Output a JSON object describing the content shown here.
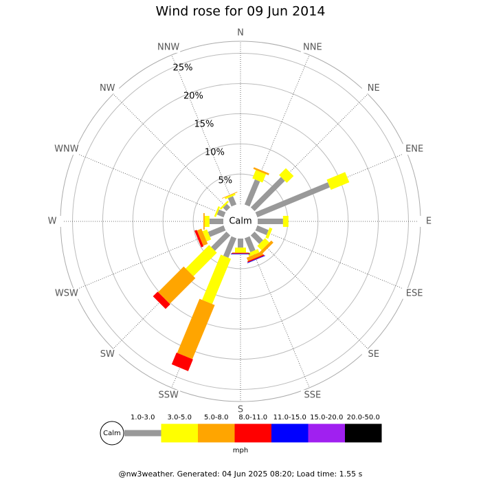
{
  "chart_data": {
    "type": "windrose",
    "title": "Wind rose for 09 Jun 2014",
    "calm_label": "Calm",
    "unit": "mph",
    "footer": "@nw3weather. Generated: 04 Jun 2025 08:20; Load time: 1.55 s",
    "categories": [
      "N",
      "NNE",
      "NE",
      "ENE",
      "E",
      "ESE",
      "SE",
      "SSE",
      "S",
      "SSW",
      "SW",
      "WSW",
      "W",
      "WNW",
      "NW",
      "NNW"
    ],
    "series": [
      {
        "name": "1.0-3.0",
        "color": "#999999",
        "values": [
          0,
          4.5,
          7.1,
          13,
          4.2,
          2,
          2,
          2.5,
          1.5,
          3.5,
          3.6,
          2.8,
          2.3,
          1.2,
          0.8,
          1.5
        ]
      },
      {
        "name": "3.0-5.0",
        "color": "#ffff00",
        "values": [
          0,
          1.5,
          1.6,
          3.3,
          0.9,
          0.5,
          1,
          0.6,
          0.8,
          8.1,
          5.5,
          0.8,
          0.8,
          0.3,
          0.3,
          0.3
        ]
      },
      {
        "name": "5.0-8.0",
        "color": "#ffa500",
        "values": [
          0,
          0.3,
          0,
          0,
          0,
          0,
          0.5,
          0.6,
          0.1,
          9.7,
          6,
          0.8,
          0.2,
          0,
          0,
          0.1
        ]
      },
      {
        "name": "8.0-11.0",
        "color": "#ff0000",
        "values": [
          0,
          0,
          0,
          0,
          0,
          0,
          0,
          0.2,
          0.1,
          2.1,
          1.1,
          0.4,
          0,
          0,
          0,
          0
        ]
      },
      {
        "name": "11.0-15.0",
        "color": "#0000ff",
        "values": [
          0,
          0,
          0,
          0,
          0,
          0,
          0,
          0.1,
          0.1,
          0,
          0,
          0,
          0,
          0,
          0,
          0
        ]
      },
      {
        "name": "15.0-20.0",
        "color": "#a020f0",
        "values": [
          0,
          0,
          0,
          0,
          0,
          0,
          0,
          0,
          0,
          0,
          0,
          0,
          0,
          0,
          0,
          0
        ]
      },
      {
        "name": "20.0-50.0",
        "color": "#000000",
        "values": [
          0,
          0,
          0,
          0,
          0,
          0,
          0,
          0,
          0,
          0,
          0,
          0,
          0,
          0,
          0,
          0
        ]
      }
    ],
    "rlim": [
      0,
      27
    ],
    "rticks": [
      {
        "value": 5,
        "label": "5%"
      },
      {
        "value": 10,
        "label": "10%"
      },
      {
        "value": 15,
        "label": "15%"
      },
      {
        "value": 20,
        "label": "20%"
      },
      {
        "value": 25,
        "label": "25%"
      }
    ]
  }
}
